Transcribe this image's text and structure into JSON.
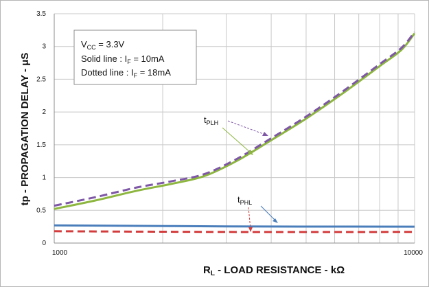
{
  "chart_data": {
    "type": "line",
    "x_scale": "log",
    "xlim": [
      1000,
      10000
    ],
    "ylim": [
      0,
      3.5
    ],
    "x_ticks": [
      "1000",
      "10000"
    ],
    "y_ticks": [
      "0",
      "0.5",
      "1",
      "1.5",
      "2",
      "2.5",
      "3",
      "3.5"
    ],
    "ylabel": {
      "text": "tp - PROPAGATION DELAY - μS"
    },
    "xlabel": {
      "main": "R",
      "sub": "L",
      "rest": " - LOAD RESISTANCE - kΩ"
    },
    "grid": true,
    "legend_box": {
      "line1": {
        "main": "V",
        "sub": "CC",
        "rest": " = 3.3V"
      },
      "line2": {
        "main": "Solid line : I",
        "sub": "F",
        "rest": " = 10mA"
      },
      "line3": {
        "main": "Dotted line : I",
        "sub": "F",
        "rest": " = 18mA"
      }
    },
    "annotations": {
      "tplh": {
        "main": "t",
        "sub": "PLH"
      },
      "tphl": {
        "main": "t",
        "sub": "PHL"
      }
    },
    "colors": {
      "tplh_solid": "#8db63f",
      "tplh_dotted": "#7e57a6",
      "tphl_solid": "#4a7ebb",
      "tphl_dotted": "#d33c3c"
    },
    "series": [
      {
        "style": "solid",
        "color": "#8db63f",
        "x": [
          1000,
          1300,
          1700,
          2100,
          2600,
          3200,
          4000,
          5000,
          6300,
          8000,
          9200,
          10000
        ],
        "y": [
          0.52,
          0.65,
          0.8,
          0.9,
          1.02,
          1.25,
          1.57,
          1.9,
          2.28,
          2.7,
          2.95,
          3.2
        ]
      },
      {
        "style": "dashed",
        "color": "#7e57a6",
        "x": [
          1000,
          1300,
          1700,
          2100,
          2600,
          3200,
          4000,
          5000,
          6300,
          8000,
          9200,
          10000
        ],
        "y": [
          0.57,
          0.7,
          0.85,
          0.94,
          1.05,
          1.28,
          1.6,
          1.93,
          2.31,
          2.73,
          2.98,
          3.22
        ]
      },
      {
        "style": "solid",
        "color": "#4a7ebb",
        "x": [
          1000,
          3000,
          10000
        ],
        "y": [
          0.27,
          0.255,
          0.25
        ]
      },
      {
        "style": "dashed",
        "color": "#d33c3c",
        "x": [
          1000,
          3000,
          10000
        ],
        "y": [
          0.18,
          0.17,
          0.17
        ]
      }
    ]
  }
}
